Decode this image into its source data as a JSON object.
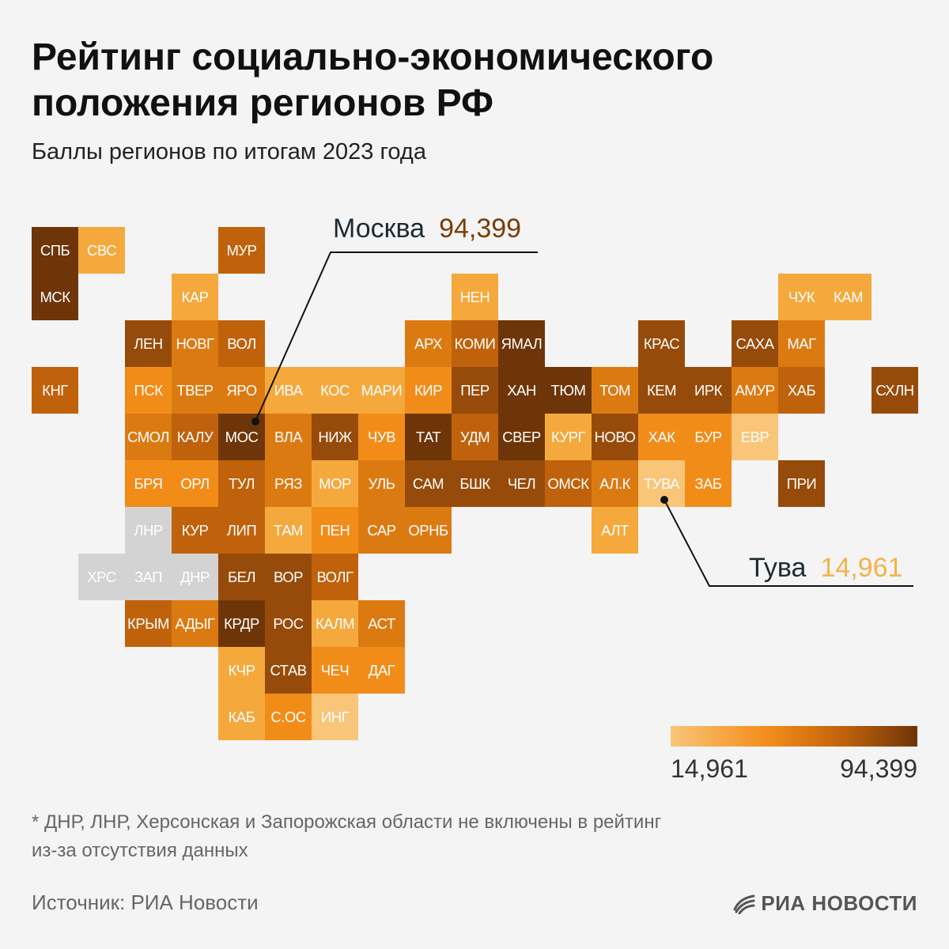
{
  "title": {
    "line1": "Рейтинг социально-экономического",
    "line2": "положения регионов РФ"
  },
  "subtitle": "Баллы регионов по итогам 2023 года",
  "callouts": {
    "moscow": {
      "name": "Москва",
      "value": "94,399"
    },
    "tuva": {
      "name": "Тува",
      "value": "14,961"
    }
  },
  "legend": {
    "min_label": "14,961",
    "max_label": "94,399",
    "min": 14.961,
    "max": 94.399
  },
  "footnote": {
    "line1": "* ДНР, ЛНР, Херсонская и Запорожская области не включены в рейтинг",
    "line2": "из-за отсутствия данных"
  },
  "source": "Источник: РИА Новости",
  "brand": {
    "name": "РИА НОВОСТИ"
  },
  "colors": {
    "no_data": "#d3d3d3",
    "scale": [
      "#f9c578",
      "#f5a93c",
      "#f28c19",
      "#dc7a12",
      "#c0620c",
      "#974b0a",
      "#6e3508"
    ],
    "background": "#f4f4f4"
  },
  "regions": [
    {
      "label": "СПБ",
      "row": 0,
      "col": 0,
      "shade": 6
    },
    {
      "label": "СВС",
      "row": 0,
      "col": 1,
      "shade": 1
    },
    {
      "label": "МУР",
      "row": 0,
      "col": 4,
      "shade": 4
    },
    {
      "label": "МСК",
      "row": 1,
      "col": 0,
      "shade": 6
    },
    {
      "label": "КАР",
      "row": 1,
      "col": 3,
      "shade": 1
    },
    {
      "label": "НЕН",
      "row": 1,
      "col": 9,
      "shade": 1
    },
    {
      "label": "ЧУК",
      "row": 1,
      "col": 16,
      "shade": 1
    },
    {
      "label": "КАМ",
      "row": 1,
      "col": 17,
      "shade": 1
    },
    {
      "label": "ЛЕН",
      "row": 2,
      "col": 2,
      "shade": 5
    },
    {
      "label": "НОВГ",
      "row": 2,
      "col": 3,
      "shade": 3
    },
    {
      "label": "ВОЛ",
      "row": 2,
      "col": 4,
      "shade": 4
    },
    {
      "label": "АРХ",
      "row": 2,
      "col": 8,
      "shade": 3
    },
    {
      "label": "КОМИ",
      "row": 2,
      "col": 9,
      "shade": 4
    },
    {
      "label": "ЯМАЛ",
      "row": 2,
      "col": 10,
      "shade": 6
    },
    {
      "label": "КРАС",
      "row": 2,
      "col": 13,
      "shade": 5
    },
    {
      "label": "САХА",
      "row": 2,
      "col": 15,
      "shade": 5
    },
    {
      "label": "МАГ",
      "row": 2,
      "col": 16,
      "shade": 3
    },
    {
      "label": "КНГ",
      "row": 3,
      "col": 0,
      "shade": 4
    },
    {
      "label": "ПСК",
      "row": 3,
      "col": 2,
      "shade": 2
    },
    {
      "label": "ТВЕР",
      "row": 3,
      "col": 3,
      "shade": 3
    },
    {
      "label": "ЯРО",
      "row": 3,
      "col": 4,
      "shade": 3
    },
    {
      "label": "ИВА",
      "row": 3,
      "col": 5,
      "shade": 1
    },
    {
      "label": "КОС",
      "row": 3,
      "col": 6,
      "shade": 1
    },
    {
      "label": "МАРИ",
      "row": 3,
      "col": 7,
      "shade": 1
    },
    {
      "label": "КИР",
      "row": 3,
      "col": 8,
      "shade": 2
    },
    {
      "label": "ПЕР",
      "row": 3,
      "col": 9,
      "shade": 5
    },
    {
      "label": "ХАН",
      "row": 3,
      "col": 10,
      "shade": 6
    },
    {
      "label": "ТЮМ",
      "row": 3,
      "col": 11,
      "shade": 6
    },
    {
      "label": "ТОМ",
      "row": 3,
      "col": 12,
      "shade": 3
    },
    {
      "label": "КЕМ",
      "row": 3,
      "col": 13,
      "shade": 5
    },
    {
      "label": "ИРК",
      "row": 3,
      "col": 14,
      "shade": 5
    },
    {
      "label": "АМУР",
      "row": 3,
      "col": 15,
      "shade": 3
    },
    {
      "label": "ХАБ",
      "row": 3,
      "col": 16,
      "shade": 4
    },
    {
      "label": "СХЛН",
      "row": 3,
      "col": 18,
      "shade": 5
    },
    {
      "label": "СМОЛ",
      "row": 4,
      "col": 2,
      "shade": 3
    },
    {
      "label": "КАЛУ",
      "row": 4,
      "col": 3,
      "shade": 4
    },
    {
      "label": "МОС",
      "row": 4,
      "col": 4,
      "shade": 6
    },
    {
      "label": "ВЛА",
      "row": 4,
      "col": 5,
      "shade": 3
    },
    {
      "label": "НИЖ",
      "row": 4,
      "col": 6,
      "shade": 5
    },
    {
      "label": "ЧУВ",
      "row": 4,
      "col": 7,
      "shade": 2
    },
    {
      "label": "ТАТ",
      "row": 4,
      "col": 8,
      "shade": 6
    },
    {
      "label": "УДМ",
      "row": 4,
      "col": 9,
      "shade": 4
    },
    {
      "label": "СВЕР",
      "row": 4,
      "col": 10,
      "shade": 6
    },
    {
      "label": "КУРГ",
      "row": 4,
      "col": 11,
      "shade": 1
    },
    {
      "label": "НОВО",
      "row": 4,
      "col": 12,
      "shade": 5
    },
    {
      "label": "ХАК",
      "row": 4,
      "col": 13,
      "shade": 2
    },
    {
      "label": "БУР",
      "row": 4,
      "col": 14,
      "shade": 2
    },
    {
      "label": "ЕВР",
      "row": 4,
      "col": 15,
      "shade": 0
    },
    {
      "label": "БРЯ",
      "row": 5,
      "col": 2,
      "shade": 2
    },
    {
      "label": "ОРЛ",
      "row": 5,
      "col": 3,
      "shade": 2
    },
    {
      "label": "ТУЛ",
      "row": 5,
      "col": 4,
      "shade": 4
    },
    {
      "label": "РЯЗ",
      "row": 5,
      "col": 5,
      "shade": 3
    },
    {
      "label": "МОР",
      "row": 5,
      "col": 6,
      "shade": 1
    },
    {
      "label": "УЛЬ",
      "row": 5,
      "col": 7,
      "shade": 3
    },
    {
      "label": "САМ",
      "row": 5,
      "col": 8,
      "shade": 5
    },
    {
      "label": "БШК",
      "row": 5,
      "col": 9,
      "shade": 5
    },
    {
      "label": "ЧЕЛ",
      "row": 5,
      "col": 10,
      "shade": 5
    },
    {
      "label": "ОМСК",
      "row": 5,
      "col": 11,
      "shade": 4
    },
    {
      "label": "АЛ.К",
      "row": 5,
      "col": 12,
      "shade": 3
    },
    {
      "label": "ТУВА",
      "row": 5,
      "col": 13,
      "shade": 0
    },
    {
      "label": "ЗАБ",
      "row": 5,
      "col": 14,
      "shade": 2
    },
    {
      "label": "ПРИ",
      "row": 5,
      "col": 16,
      "shade": 5
    },
    {
      "label": "ЛНР",
      "row": 6,
      "col": 2,
      "shade": -1
    },
    {
      "label": "КУР",
      "row": 6,
      "col": 3,
      "shade": 4
    },
    {
      "label": "ЛИП",
      "row": 6,
      "col": 4,
      "shade": 4
    },
    {
      "label": "ТАМ",
      "row": 6,
      "col": 5,
      "shade": 1
    },
    {
      "label": "ПЕН",
      "row": 6,
      "col": 6,
      "shade": 2
    },
    {
      "label": "САР",
      "row": 6,
      "col": 7,
      "shade": 3
    },
    {
      "label": "ОРНБ",
      "row": 6,
      "col": 8,
      "shade": 3
    },
    {
      "label": "АЛТ",
      "row": 6,
      "col": 12,
      "shade": 1
    },
    {
      "label": "ХРС",
      "row": 7,
      "col": 1,
      "shade": -1
    },
    {
      "label": "ЗАП",
      "row": 7,
      "col": 2,
      "shade": -1
    },
    {
      "label": "ДНР",
      "row": 7,
      "col": 3,
      "shade": -1
    },
    {
      "label": "БЕЛ",
      "row": 7,
      "col": 4,
      "shade": 5
    },
    {
      "label": "ВОР",
      "row": 7,
      "col": 5,
      "shade": 5
    },
    {
      "label": "ВОЛГ",
      "row": 7,
      "col": 6,
      "shade": 4
    },
    {
      "label": "КРЫМ",
      "row": 8,
      "col": 2,
      "shade": 4
    },
    {
      "label": "АДЫГ",
      "row": 8,
      "col": 3,
      "shade": 3
    },
    {
      "label": "КРДР",
      "row": 8,
      "col": 4,
      "shade": 6
    },
    {
      "label": "РОС",
      "row": 8,
      "col": 5,
      "shade": 5
    },
    {
      "label": "КАЛМ",
      "row": 8,
      "col": 6,
      "shade": 1
    },
    {
      "label": "АСТ",
      "row": 8,
      "col": 7,
      "shade": 3
    },
    {
      "label": "КЧР",
      "row": 9,
      "col": 4,
      "shade": 1
    },
    {
      "label": "СТАВ",
      "row": 9,
      "col": 5,
      "shade": 5
    },
    {
      "label": "ЧЕЧ",
      "row": 9,
      "col": 6,
      "shade": 2
    },
    {
      "label": "ДАГ",
      "row": 9,
      "col": 7,
      "shade": 2
    },
    {
      "label": "КАБ",
      "row": 10,
      "col": 4,
      "shade": 1
    },
    {
      "label": "С.ОС",
      "row": 10,
      "col": 5,
      "shade": 2
    },
    {
      "label": "ИНГ",
      "row": 10,
      "col": 6,
      "shade": 0
    }
  ]
}
